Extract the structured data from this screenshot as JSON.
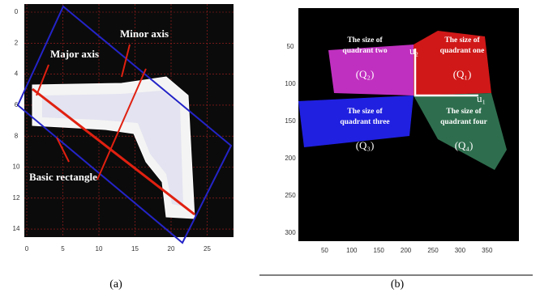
{
  "panel_a": {
    "yticks": [
      0,
      2,
      4,
      6,
      8,
      10,
      12,
      14
    ],
    "xticks": [
      0,
      5,
      10,
      15,
      20,
      25
    ],
    "annotations": {
      "major_axis": "Major axis",
      "minor_axis": "Minor axis",
      "basic_rectangle": "Basic rectangle"
    },
    "caption": "(a)"
  },
  "panel_b": {
    "yticks": [
      50,
      100,
      150,
      200,
      250,
      300
    ],
    "xticks": [
      50,
      100,
      150,
      200,
      250,
      300,
      350
    ],
    "quadrants": [
      {
        "lines": [
          "The size of",
          "quadrant one"
        ],
        "label": "(Q₁)"
      },
      {
        "lines": [
          "The size of",
          "quadrant two"
        ],
        "label": "(Q₂)"
      },
      {
        "lines": [
          "The size of",
          "quadrant three"
        ],
        "label": "(Q₃)"
      },
      {
        "lines": [
          "The size of",
          "quadrant four"
        ],
        "label": "(Q₄)"
      }
    ],
    "axis_labels": [
      "u₂",
      "u₁"
    ],
    "caption": "(b)"
  }
}
